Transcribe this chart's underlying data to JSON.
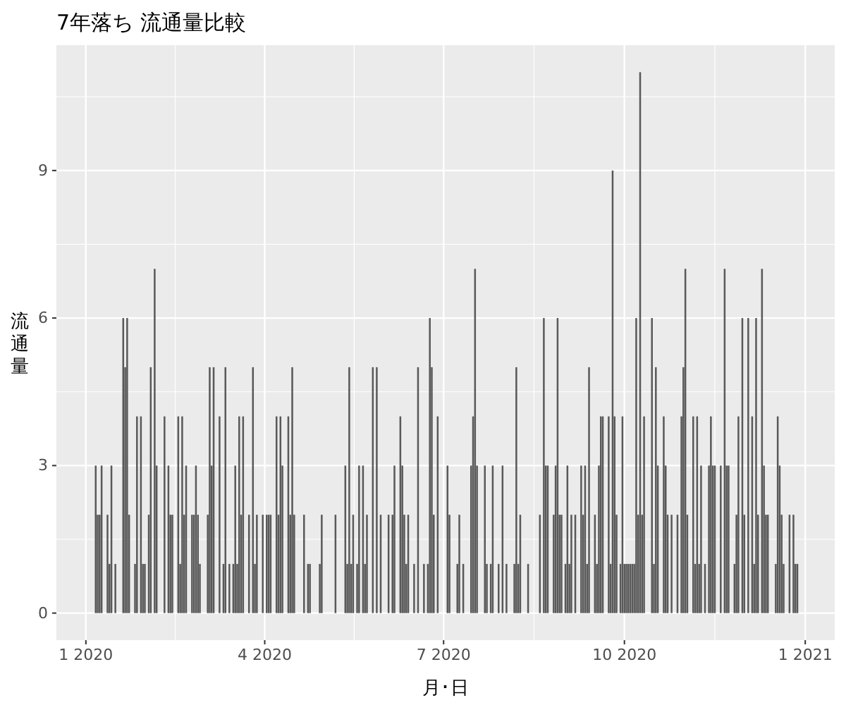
{
  "chart_data": {
    "type": "bar",
    "title": "7年落ち 流通量比較",
    "xlabel": "月･日",
    "ylabel": "流通量",
    "x": [
      "2020-01-06",
      "2020-01-07",
      "2020-01-08",
      "2020-01-09",
      "2020-01-12",
      "2020-01-13",
      "2020-01-14",
      "2020-01-16",
      "2020-01-20",
      "2020-01-21",
      "2020-01-22",
      "2020-01-23",
      "2020-01-26",
      "2020-01-27",
      "2020-01-29",
      "2020-01-30",
      "2020-01-31",
      "2020-02-02",
      "2020-02-03",
      "2020-02-05",
      "2020-02-06",
      "2020-02-10",
      "2020-02-12",
      "2020-02-13",
      "2020-02-14",
      "2020-02-17",
      "2020-02-18",
      "2020-02-19",
      "2020-02-20",
      "2020-02-21",
      "2020-02-24",
      "2020-02-25",
      "2020-02-26",
      "2020-02-27",
      "2020-02-28",
      "2020-03-03",
      "2020-03-04",
      "2020-03-05",
      "2020-03-06",
      "2020-03-09",
      "2020-03-11",
      "2020-03-12",
      "2020-03-14",
      "2020-03-16",
      "2020-03-17",
      "2020-03-18",
      "2020-03-19",
      "2020-03-20",
      "2020-03-21",
      "2020-03-24",
      "2020-03-26",
      "2020-03-27",
      "2020-03-28",
      "2020-03-31",
      "2020-04-02",
      "2020-04-03",
      "2020-04-04",
      "2020-04-07",
      "2020-04-08",
      "2020-04-09",
      "2020-04-10",
      "2020-04-13",
      "2020-04-14",
      "2020-04-15",
      "2020-04-16",
      "2020-04-21",
      "2020-04-23",
      "2020-04-24",
      "2020-04-29",
      "2020-04-30",
      "2020-05-07",
      "2020-05-12",
      "2020-05-13",
      "2020-05-14",
      "2020-05-15",
      "2020-05-16",
      "2020-05-18",
      "2020-05-19",
      "2020-05-21",
      "2020-05-22",
      "2020-05-23",
      "2020-05-26",
      "2020-05-28",
      "2020-05-30",
      "2020-06-03",
      "2020-06-05",
      "2020-06-06",
      "2020-06-09",
      "2020-06-10",
      "2020-06-11",
      "2020-06-12",
      "2020-06-13",
      "2020-06-16",
      "2020-06-18",
      "2020-06-21",
      "2020-06-23",
      "2020-06-24",
      "2020-06-25",
      "2020-06-26",
      "2020-06-28",
      "2020-07-03",
      "2020-07-04",
      "2020-07-08",
      "2020-07-09",
      "2020-07-11",
      "2020-07-15",
      "2020-07-16",
      "2020-07-17",
      "2020-07-18",
      "2020-07-22",
      "2020-07-23",
      "2020-07-25",
      "2020-07-26",
      "2020-07-29",
      "2020-07-31",
      "2020-08-02",
      "2020-08-06",
      "2020-08-07",
      "2020-08-08",
      "2020-08-09",
      "2020-08-13",
      "2020-08-19",
      "2020-08-21",
      "2020-08-22",
      "2020-08-23",
      "2020-08-26",
      "2020-08-27",
      "2020-08-28",
      "2020-08-29",
      "2020-08-30",
      "2020-09-01",
      "2020-09-02",
      "2020-09-03",
      "2020-09-04",
      "2020-09-06",
      "2020-09-09",
      "2020-09-10",
      "2020-09-11",
      "2020-09-12",
      "2020-09-13",
      "2020-09-16",
      "2020-09-17",
      "2020-09-18",
      "2020-09-19",
      "2020-09-20",
      "2020-09-23",
      "2020-09-24",
      "2020-09-25",
      "2020-09-26",
      "2020-09-27",
      "2020-09-29",
      "2020-09-30",
      "2020-10-01",
      "2020-10-02",
      "2020-10-03",
      "2020-10-04",
      "2020-10-05",
      "2020-10-06",
      "2020-10-07",
      "2020-10-08",
      "2020-10-09",
      "2020-10-10",
      "2020-10-11",
      "2020-10-15",
      "2020-10-16",
      "2020-10-17",
      "2020-10-18",
      "2020-10-21",
      "2020-10-22",
      "2020-10-23",
      "2020-10-25",
      "2020-10-28",
      "2020-10-30",
      "2020-10-31",
      "2020-11-01",
      "2020-11-02",
      "2020-11-05",
      "2020-11-06",
      "2020-11-07",
      "2020-11-08",
      "2020-11-09",
      "2020-11-11",
      "2020-11-13",
      "2020-11-14",
      "2020-11-15",
      "2020-11-16",
      "2020-11-19",
      "2020-11-21",
      "2020-11-22",
      "2020-11-23",
      "2020-11-26",
      "2020-11-27",
      "2020-11-28",
      "2020-11-30",
      "2020-12-01",
      "2020-12-03",
      "2020-12-05",
      "2020-12-06",
      "2020-12-07",
      "2020-12-08",
      "2020-12-10",
      "2020-12-11",
      "2020-12-12",
      "2020-12-13",
      "2020-12-17",
      "2020-12-18",
      "2020-12-19",
      "2020-12-20",
      "2020-12-21",
      "2020-12-24",
      "2020-12-26",
      "2020-12-27",
      "2020-12-28"
    ],
    "values": [
      3,
      2,
      2,
      3,
      2,
      1,
      3,
      1,
      6,
      5,
      6,
      2,
      1,
      4,
      4,
      1,
      1,
      2,
      5,
      7,
      3,
      4,
      3,
      2,
      2,
      4,
      1,
      4,
      2,
      3,
      2,
      2,
      3,
      2,
      1,
      2,
      5,
      3,
      5,
      4,
      1,
      5,
      1,
      1,
      3,
      1,
      4,
      2,
      4,
      2,
      5,
      1,
      2,
      2,
      2,
      2,
      2,
      4,
      2,
      4,
      3,
      4,
      2,
      5,
      2,
      2,
      1,
      1,
      1,
      2,
      2,
      3,
      1,
      5,
      1,
      2,
      1,
      3,
      3,
      1,
      2,
      5,
      5,
      2,
      2,
      2,
      3,
      4,
      3,
      2,
      1,
      2,
      1,
      5,
      1,
      1,
      6,
      5,
      2,
      4,
      3,
      2,
      1,
      2,
      1,
      3,
      4,
      7,
      3,
      3,
      1,
      1,
      3,
      1,
      3,
      1,
      1,
      5,
      1,
      2,
      1,
      2,
      6,
      3,
      3,
      2,
      3,
      6,
      2,
      2,
      1,
      3,
      1,
      2,
      2,
      3,
      2,
      3,
      1,
      5,
      2,
      1,
      3,
      4,
      4,
      4,
      1,
      9,
      4,
      2,
      1,
      4,
      1,
      1,
      1,
      1,
      1,
      1,
      6,
      2,
      11,
      2,
      4,
      6,
      1,
      5,
      3,
      4,
      3,
      2,
      2,
      2,
      4,
      5,
      7,
      2,
      4,
      1,
      4,
      1,
      3,
      1,
      3,
      4,
      3,
      3,
      3,
      7,
      3,
      3,
      1,
      2,
      4,
      6,
      2,
      6,
      4,
      1,
      6,
      2,
      7,
      3,
      2,
      2,
      1,
      4,
      3,
      2,
      1,
      2,
      2,
      1,
      1
    ],
    "color": "#595959",
    "xlim": [
      "2019-12-17",
      "2021-01-16"
    ],
    "xticks": [
      {
        "value": "2020-01-01",
        "label": "1 2020"
      },
      {
        "value": "2020-04-01",
        "label": "4 2020"
      },
      {
        "value": "2020-07-01",
        "label": "7 2020"
      },
      {
        "value": "2020-10-01",
        "label": "10 2020"
      },
      {
        "value": "2021-01-01",
        "label": "1 2021"
      }
    ],
    "ylim": [
      -0.55,
      11.55
    ],
    "yticks": [
      0,
      3,
      6,
      9
    ],
    "grid": true
  }
}
